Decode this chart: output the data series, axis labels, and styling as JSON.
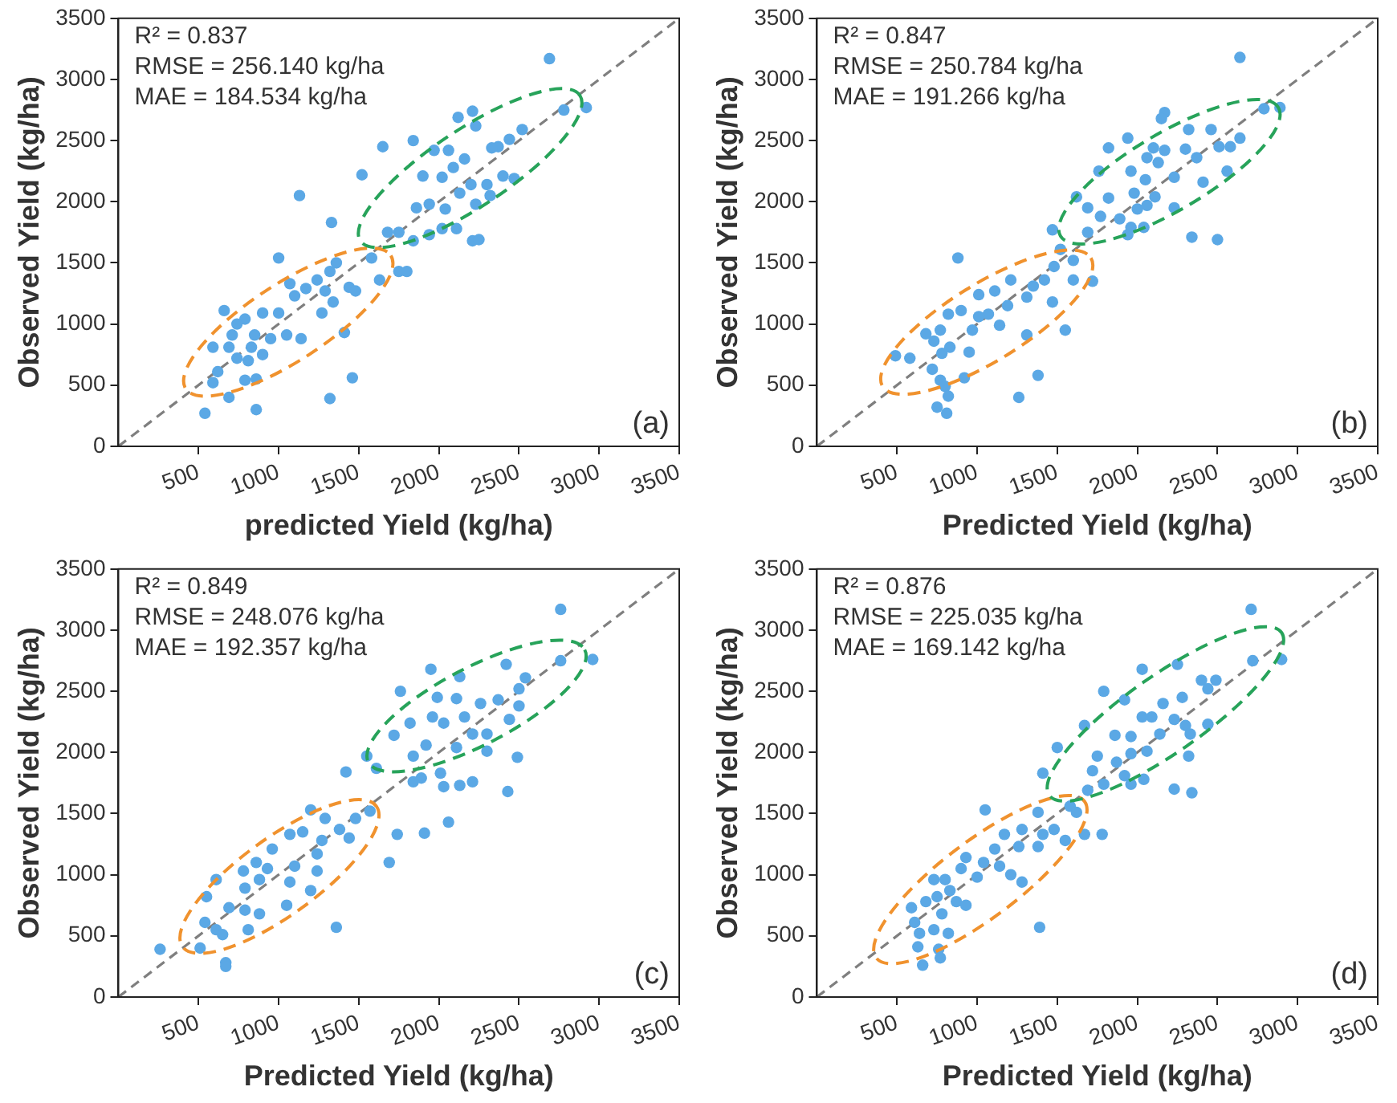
{
  "chart_data": [
    {
      "type": "scatter",
      "xlabel": "predicted Yield (kg/ha)",
      "ylabel": "Observed Yield (kg/ha)",
      "xlim": [
        0,
        3500
      ],
      "ylim": [
        0,
        3500
      ],
      "xticks": [
        500,
        1000,
        1500,
        2000,
        2500,
        3000,
        3500
      ],
      "yticks": [
        0,
        500,
        1000,
        1500,
        2000,
        2500,
        3000,
        3500
      ],
      "grid": false,
      "marker": "circle",
      "annotations": [
        "R² = 0.837",
        "RMSE = 256.140 kg/ha",
        "MAE = 184.534 kg/ha",
        "(a)"
      ],
      "series": [
        {
          "type": "scatter",
          "color": "#5ba8e5",
          "x": [
            2690,
            2920,
            2780,
            2120,
            2210,
            2230,
            2520,
            2440,
            2370,
            2330,
            1840,
            1650,
            1970,
            2060,
            2160,
            2090,
            2020,
            1900,
            2130,
            2200,
            2300,
            2400,
            2470,
            2320,
            2230,
            1860,
            1940,
            2040,
            1520,
            1130,
            2020,
            2110,
            1940,
            2210,
            2250,
            1680,
            1750,
            1840,
            1330,
            1580,
            1630,
            1750,
            1800,
            1000,
            1360,
            1320,
            1240,
            1170,
            1070,
            1290,
            1440,
            1480,
            1340,
            1270,
            1100,
            1000,
            900,
            790,
            740,
            660,
            1050,
            1140,
            950,
            850,
            830,
            710,
            690,
            740,
            810,
            900,
            590,
            1410,
            620,
            790,
            860,
            1460,
            590,
            690,
            1320,
            860,
            540
          ],
          "values": [
            3170,
            2770,
            2750,
            2690,
            2740,
            2620,
            2590,
            2510,
            2450,
            2440,
            2500,
            2450,
            2420,
            2420,
            2350,
            2280,
            2200,
            2210,
            2070,
            2140,
            2140,
            2210,
            2190,
            2050,
            1980,
            1950,
            1980,
            1940,
            2220,
            2050,
            1780,
            1780,
            1730,
            1680,
            1690,
            1750,
            1750,
            1680,
            1830,
            1540,
            1360,
            1430,
            1430,
            1540,
            1500,
            1430,
            1360,
            1290,
            1330,
            1270,
            1300,
            1270,
            1180,
            1090,
            1230,
            1090,
            1090,
            1040,
            1000,
            1110,
            910,
            880,
            880,
            910,
            810,
            910,
            810,
            720,
            700,
            750,
            810,
            930,
            610,
            540,
            550,
            560,
            520,
            400,
            390,
            300,
            270
          ]
        },
        {
          "type": "line",
          "color": "#7f7f7f",
          "x": [
            0,
            3500
          ],
          "values": [
            0,
            3500
          ],
          "line_style": "dashed",
          "marker": "none"
        }
      ]
    },
    {
      "type": "scatter",
      "xlabel": "Predicted Yield (kg/ha)",
      "ylabel": "Observed Yield (kg/ha)",
      "xlim": [
        0,
        3500
      ],
      "ylim": [
        0,
        3500
      ],
      "xticks": [
        500,
        1000,
        1500,
        2000,
        2500,
        3000,
        3500
      ],
      "yticks": [
        0,
        500,
        1000,
        1500,
        2000,
        2500,
        3000,
        3500
      ],
      "grid": false,
      "marker": "circle",
      "annotations": [
        "R² = 0.847",
        "RMSE = 250.784 kg/ha",
        "MAE = 191.266 kg/ha",
        "(b)"
      ],
      "series": [
        {
          "type": "scatter",
          "color": "#5ba8e5",
          "x": [
            2640,
            2890,
            2790,
            2170,
            2150,
            1940,
            1820,
            2320,
            2460,
            2640,
            2580,
            2100,
            2170,
            2060,
            2130,
            2300,
            2370,
            2510,
            1760,
            1960,
            2050,
            2230,
            2410,
            2560,
            1820,
            1980,
            2110,
            1620,
            1690,
            2000,
            2060,
            2230,
            1770,
            1890,
            1690,
            1470,
            1960,
            2040,
            1940,
            2340,
            2500,
            1520,
            1600,
            1480,
            1720,
            1600,
            880,
            1420,
            1350,
            1210,
            1110,
            1310,
            1470,
            1010,
            1190,
            1070,
            1140,
            1010,
            900,
            820,
            770,
            970,
            1310,
            1550,
            680,
            730,
            830,
            950,
            780,
            580,
            490,
            720,
            920,
            1380,
            770,
            800,
            820,
            1260,
            750,
            810
          ],
          "values": [
            3180,
            2770,
            2760,
            2730,
            2680,
            2520,
            2440,
            2590,
            2590,
            2520,
            2450,
            2440,
            2420,
            2360,
            2320,
            2430,
            2360,
            2450,
            2250,
            2250,
            2180,
            2200,
            2160,
            2250,
            2030,
            2070,
            2040,
            2040,
            1950,
            1940,
            1970,
            1950,
            1880,
            1860,
            1750,
            1770,
            1790,
            1790,
            1730,
            1710,
            1690,
            1610,
            1520,
            1470,
            1350,
            1360,
            1540,
            1360,
            1310,
            1360,
            1270,
            1220,
            1180,
            1240,
            1150,
            1080,
            990,
            1060,
            1110,
            1080,
            950,
            950,
            910,
            950,
            920,
            860,
            810,
            770,
            760,
            720,
            740,
            630,
            560,
            580,
            540,
            490,
            410,
            400,
            320,
            270
          ]
        },
        {
          "type": "line",
          "color": "#7f7f7f",
          "x": [
            0,
            3500
          ],
          "values": [
            0,
            3500
          ],
          "line_style": "dashed",
          "marker": "none"
        }
      ]
    },
    {
      "type": "scatter",
      "xlabel": "Predicted Yield (kg/ha)",
      "ylabel": "Observed Yield (kg/ha)",
      "xlim": [
        0,
        3500
      ],
      "ylim": [
        0,
        3500
      ],
      "xticks": [
        500,
        1000,
        1500,
        2000,
        2500,
        3000,
        3500
      ],
      "yticks": [
        0,
        500,
        1000,
        1500,
        2000,
        2500,
        3000,
        3500
      ],
      "grid": false,
      "marker": "circle",
      "annotations": [
        "R² = 0.849",
        "RMSE = 248.076 kg/ha",
        "MAE = 192.357 kg/ha",
        "(c)"
      ],
      "series": [
        {
          "type": "scatter",
          "color": "#5ba8e5",
          "x": [
            2760,
            2960,
            2760,
            1950,
            2130,
            2420,
            2540,
            1760,
            1990,
            2110,
            2260,
            2370,
            2500,
            2500,
            2440,
            1960,
            2030,
            2160,
            2210,
            2300,
            1720,
            1820,
            1920,
            2110,
            2300,
            2490,
            1840,
            1550,
            1610,
            1420,
            1890,
            2010,
            2030,
            1840,
            2130,
            2210,
            2430,
            1570,
            1740,
            1910,
            2060,
            1690,
            1200,
            1290,
            1480,
            1380,
            1440,
            1070,
            1150,
            1270,
            1240,
            960,
            1100,
            1240,
            860,
            780,
            930,
            790,
            880,
            1070,
            1200,
            610,
            550,
            690,
            790,
            880,
            1050,
            810,
            540,
            610,
            650,
            1360,
            510,
            260,
            670,
            670
          ],
          "values": [
            3170,
            2760,
            2750,
            2680,
            2620,
            2720,
            2610,
            2500,
            2450,
            2440,
            2400,
            2430,
            2520,
            2380,
            2270,
            2290,
            2240,
            2290,
            2150,
            2150,
            2140,
            2240,
            2060,
            2040,
            2010,
            1960,
            1970,
            1970,
            1870,
            1840,
            1790,
            1830,
            1720,
            1760,
            1730,
            1760,
            1680,
            1520,
            1330,
            1340,
            1430,
            1100,
            1530,
            1460,
            1460,
            1370,
            1300,
            1330,
            1350,
            1280,
            1170,
            1210,
            1070,
            1030,
            1100,
            1030,
            1050,
            890,
            960,
            940,
            870,
            960,
            820,
            730,
            710,
            680,
            750,
            550,
            610,
            550,
            510,
            570,
            400,
            390,
            280,
            250
          ]
        },
        {
          "type": "line",
          "color": "#7f7f7f",
          "x": [
            0,
            3500
          ],
          "values": [
            0,
            3500
          ],
          "line_style": "dashed",
          "marker": "none"
        }
      ]
    },
    {
      "type": "scatter",
      "xlabel": "Predicted Yield (kg/ha)",
      "ylabel": "Observed Yield (kg/ha)",
      "xlim": [
        0,
        3500
      ],
      "ylim": [
        0,
        3500
      ],
      "xticks": [
        500,
        1000,
        1500,
        2000,
        2500,
        3000,
        3500
      ],
      "yticks": [
        0,
        500,
        1000,
        1500,
        2000,
        2500,
        3000,
        3500
      ],
      "grid": false,
      "marker": "circle",
      "annotations": [
        "R² = 0.876",
        "RMSE = 225.035 kg/ha",
        "MAE = 169.142 kg/ha",
        "(d)"
      ],
      "series": [
        {
          "type": "scatter",
          "color": "#5ba8e5",
          "x": [
            2710,
            2900,
            2720,
            2250,
            2030,
            1790,
            1920,
            2400,
            2490,
            2440,
            2280,
            2160,
            2090,
            2030,
            2230,
            2300,
            2440,
            1670,
            1860,
            1960,
            2140,
            2330,
            1500,
            1960,
            2060,
            1750,
            1870,
            2320,
            1410,
            1720,
            1920,
            1790,
            1960,
            2040,
            2230,
            2340,
            1690,
            1580,
            1620,
            1670,
            1780,
            1050,
            1380,
            1480,
            1410,
            1280,
            1170,
            1110,
            1260,
            1380,
            1550,
            930,
            1040,
            1140,
            900,
            1000,
            800,
            1210,
            1280,
            730,
            830,
            680,
            750,
            590,
            870,
            930,
            780,
            610,
            730,
            820,
            1390,
            640,
            630,
            760,
            770,
            660
          ],
          "values": [
            3170,
            2760,
            2750,
            2720,
            2680,
            2500,
            2430,
            2590,
            2590,
            2520,
            2450,
            2400,
            2290,
            2290,
            2270,
            2220,
            2230,
            2220,
            2140,
            2130,
            2150,
            2150,
            2040,
            1990,
            2010,
            1970,
            1920,
            1970,
            1830,
            1850,
            1810,
            1740,
            1740,
            1780,
            1700,
            1670,
            1690,
            1560,
            1510,
            1330,
            1330,
            1530,
            1510,
            1370,
            1330,
            1370,
            1330,
            1210,
            1230,
            1230,
            1280,
            1140,
            1100,
            1070,
            1050,
            980,
            960,
            1000,
            940,
            960,
            870,
            780,
            820,
            730,
            780,
            750,
            680,
            610,
            550,
            520,
            570,
            520,
            410,
            390,
            320,
            260
          ]
        },
        {
          "type": "line",
          "color": "#7f7f7f",
          "x": [
            0,
            3500
          ],
          "values": [
            0,
            3500
          ],
          "line_style": "dashed",
          "marker": "none"
        }
      ]
    }
  ]
}
